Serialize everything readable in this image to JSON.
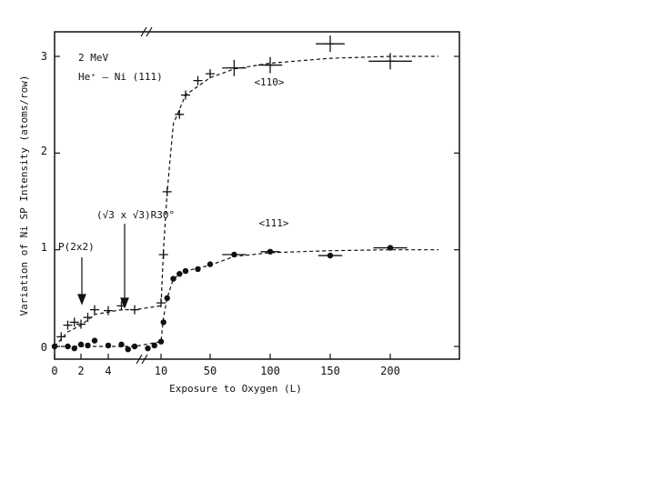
{
  "chart_data": {
    "type": "scatter",
    "xlabel": "Exposure to Oxygen (L)",
    "ylabel": "Variation of Ni SP Intensity (atoms/row)",
    "x_ticks": [
      "0",
      "2",
      "4",
      "10",
      "50",
      "100",
      "150",
      "200"
    ],
    "y_ticks": [
      "0",
      "1",
      "2",
      "3"
    ],
    "x_axis_break": true,
    "ylim": [
      -0.1,
      3.25
    ],
    "grid": false,
    "annotations": {
      "beam_line1": "2 MeV",
      "beam_line2": "He⁺ — Ni (111)",
      "p2x2": "P(2x2)",
      "sqrt3": "(√3 x √3)R30°",
      "label_110": "<110>",
      "label_111": "<111>"
    },
    "series": [
      {
        "name": "<110>",
        "marker": "plus",
        "points": [
          {
            "x": "0.5",
            "y": 0.1
          },
          {
            "x": "1",
            "y": 0.22
          },
          {
            "x": "1.5",
            "y": 0.25
          },
          {
            "x": "2",
            "y": 0.23
          },
          {
            "x": "2.5",
            "y": 0.3
          },
          {
            "x": "3",
            "y": 0.38
          },
          {
            "x": "4",
            "y": 0.37
          },
          {
            "x": "5",
            "y": 0.42
          },
          {
            "x": "6",
            "y": 0.38
          },
          {
            "x": "10",
            "y": 0.45
          },
          {
            "x": "12",
            "y": 0.95
          },
          {
            "x": "15",
            "y": 1.6
          },
          {
            "x": "25",
            "y": 2.4
          },
          {
            "x": "30",
            "y": 2.6
          },
          {
            "x": "40",
            "y": 2.75
          },
          {
            "x": "50",
            "y": 2.82
          },
          {
            "x": "70",
            "y": 2.88
          },
          {
            "x": "100",
            "y": 2.91
          },
          {
            "x": "150",
            "y": 3.13
          },
          {
            "x": "200",
            "y": 2.95
          }
        ],
        "x_error": [
          null,
          null,
          null,
          null,
          null,
          null,
          null,
          null,
          null,
          null,
          null,
          null,
          null,
          null,
          null,
          null,
          10,
          10,
          12,
          18
        ]
      },
      {
        "name": "<111>",
        "marker": "dot",
        "points": [
          {
            "x": "0",
            "y": 0.0
          },
          {
            "x": "1",
            "y": 0.0
          },
          {
            "x": "1.5",
            "y": -0.02
          },
          {
            "x": "2",
            "y": 0.02
          },
          {
            "x": "2.5",
            "y": 0.01
          },
          {
            "x": "3",
            "y": 0.06
          },
          {
            "x": "4",
            "y": 0.01
          },
          {
            "x": "5",
            "y": 0.02
          },
          {
            "x": "5.5",
            "y": -0.03
          },
          {
            "x": "6",
            "y": 0.0
          },
          {
            "x": "8",
            "y": -0.02
          },
          {
            "x": "9",
            "y": 0.01
          },
          {
            "x": "10",
            "y": 0.05
          },
          {
            "x": "12",
            "y": 0.25
          },
          {
            "x": "15",
            "y": 0.5
          },
          {
            "x": "20",
            "y": 0.7
          },
          {
            "x": "25",
            "y": 0.75
          },
          {
            "x": "30",
            "y": 0.78
          },
          {
            "x": "40",
            "y": 0.8
          },
          {
            "x": "50",
            "y": 0.85
          },
          {
            "x": "70",
            "y": 0.95
          },
          {
            "x": "100",
            "y": 0.98
          },
          {
            "x": "150",
            "y": 0.94
          },
          {
            "x": "200",
            "y": 1.02
          }
        ],
        "x_error": [
          null,
          null,
          null,
          null,
          null,
          null,
          null,
          null,
          null,
          null,
          null,
          null,
          null,
          null,
          null,
          null,
          null,
          null,
          null,
          null,
          10,
          8,
          10,
          14
        ]
      }
    ],
    "fit_110": [
      [
        0,
        0.0
      ],
      [
        1,
        0.15
      ],
      [
        2,
        0.22
      ],
      [
        3,
        0.33
      ],
      [
        5,
        0.38
      ],
      [
        6,
        0.38
      ],
      [
        10,
        0.42
      ],
      [
        12,
        1.0
      ],
      [
        15,
        1.6
      ],
      [
        20,
        2.3
      ],
      [
        30,
        2.6
      ],
      [
        50,
        2.78
      ],
      [
        70,
        2.87
      ],
      [
        100,
        2.93
      ],
      [
        150,
        2.98
      ],
      [
        200,
        3.0
      ],
      [
        240,
        3.0
      ]
    ],
    "fit_111": [
      [
        0,
        0.0
      ],
      [
        6,
        0.0
      ],
      [
        10,
        0.05
      ],
      [
        12,
        0.3
      ],
      [
        15,
        0.5
      ],
      [
        20,
        0.7
      ],
      [
        30,
        0.78
      ],
      [
        50,
        0.84
      ],
      [
        70,
        0.93
      ],
      [
        100,
        0.97
      ],
      [
        150,
        0.99
      ],
      [
        200,
        1.0
      ],
      [
        240,
        1.0
      ]
    ]
  }
}
